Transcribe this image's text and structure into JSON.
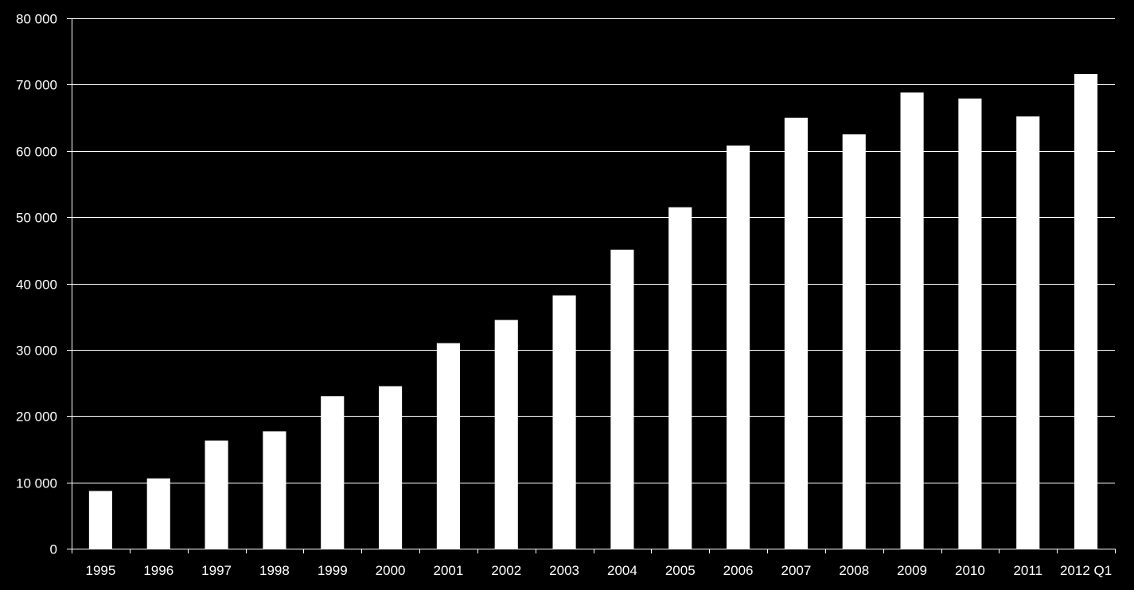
{
  "chart_data": {
    "type": "bar",
    "title": "",
    "xlabel": "",
    "ylabel": "",
    "categories": [
      "1995",
      "1996",
      "1997",
      "1998",
      "1999",
      "2000",
      "2001",
      "2002",
      "2003",
      "2004",
      "2005",
      "2006",
      "2007",
      "2008",
      "2009",
      "2010",
      "2011",
      "2012 Q1"
    ],
    "values": [
      8700,
      10600,
      16300,
      17700,
      23000,
      24500,
      31000,
      34500,
      38200,
      45100,
      51500,
      60800,
      65000,
      62500,
      68800,
      67900,
      65200,
      71600
    ],
    "ylim": [
      0,
      80000
    ],
    "yticks": [
      0,
      10000,
      20000,
      30000,
      40000,
      50000,
      60000,
      70000,
      80000
    ],
    "ytick_labels": [
      "0",
      "10 000",
      "20 000",
      "30 000",
      "40 000",
      "50 000",
      "60 000",
      "70 000",
      "80 000"
    ],
    "grid": true,
    "legend": "none",
    "colors": {
      "background": "#000000",
      "bar": "#ffffff",
      "grid": "#ffffff",
      "axis": "#ffffff",
      "text": "#ffffff"
    }
  }
}
